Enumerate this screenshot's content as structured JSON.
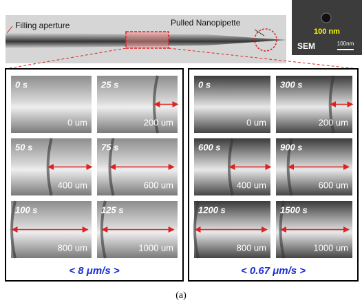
{
  "top": {
    "filling_label": "Filling aperture",
    "pipette_label": "Pulled Nanopipette",
    "sem": {
      "size_label": "100 nm",
      "name": "SEM",
      "scale_label": "100nm"
    }
  },
  "panels": [
    {
      "frames": [
        {
          "time": "0 s",
          "distance": "0 um"
        },
        {
          "time": "25 s",
          "distance": "200 um"
        },
        {
          "time": "50 s",
          "distance": "400 um"
        },
        {
          "time": "75 s",
          "distance": "600 um"
        },
        {
          "time": "100 s",
          "distance": "800 um"
        },
        {
          "time": "125 s",
          "distance": "1000 um"
        }
      ],
      "speed": "< 8 μm/s >"
    },
    {
      "frames": [
        {
          "time": "0 s",
          "distance": "0 um"
        },
        {
          "time": "300 s",
          "distance": "200 um"
        },
        {
          "time": "600 s",
          "distance": "400 um"
        },
        {
          "time": "900 s",
          "distance": "600 um"
        },
        {
          "time": "1200 s",
          "distance": "800 um"
        },
        {
          "time": "1500 s",
          "distance": "1000 um"
        }
      ],
      "speed": "< 0.67 μm/s >"
    }
  ],
  "caption": "(a)"
}
